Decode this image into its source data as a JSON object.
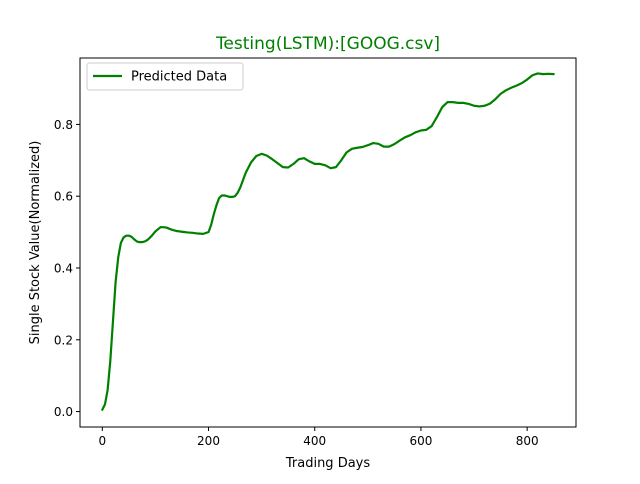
{
  "chart_data": {
    "type": "line",
    "title": "Testing(LSTM):[GOOG.csv]",
    "xlabel": "Trading Days",
    "ylabel": "Single Stock Value(Normalized)",
    "xlim": [
      -42,
      892
    ],
    "ylim": [
      -0.043,
      0.985
    ],
    "xticks": [
      0,
      200,
      400,
      600,
      800
    ],
    "xtick_labels": [
      "0",
      "200",
      "400",
      "600",
      "800"
    ],
    "yticks": [
      0.0,
      0.2,
      0.4,
      0.6,
      0.8
    ],
    "ytick_labels": [
      "0.0",
      "0.2",
      "0.4",
      "0.6",
      "0.8"
    ],
    "grid": false,
    "legend": {
      "placement": "top-left",
      "entries": [
        "Predicted Data"
      ]
    },
    "series": [
      {
        "name": "Predicted Data",
        "color": "#008000",
        "x": [
          0,
          5,
          10,
          15,
          20,
          25,
          30,
          35,
          40,
          45,
          50,
          55,
          60,
          65,
          70,
          75,
          80,
          85,
          90,
          95,
          100,
          110,
          120,
          130,
          140,
          150,
          160,
          170,
          180,
          190,
          200,
          205,
          210,
          215,
          220,
          225,
          230,
          235,
          240,
          245,
          250,
          255,
          260,
          265,
          270,
          280,
          290,
          300,
          310,
          320,
          330,
          340,
          350,
          360,
          370,
          380,
          390,
          400,
          410,
          420,
          430,
          440,
          450,
          460,
          470,
          480,
          490,
          500,
          510,
          520,
          530,
          540,
          550,
          560,
          570,
          580,
          590,
          600,
          610,
          620,
          630,
          640,
          650,
          660,
          670,
          680,
          690,
          700,
          710,
          720,
          730,
          740,
          750,
          760,
          770,
          780,
          790,
          800,
          810,
          820,
          830,
          840,
          850
        ],
        "y": [
          0.005,
          0.02,
          0.06,
          0.14,
          0.25,
          0.36,
          0.43,
          0.47,
          0.485,
          0.49,
          0.49,
          0.487,
          0.48,
          0.474,
          0.472,
          0.472,
          0.474,
          0.478,
          0.485,
          0.493,
          0.502,
          0.514,
          0.513,
          0.507,
          0.503,
          0.501,
          0.499,
          0.498,
          0.496,
          0.495,
          0.5,
          0.52,
          0.55,
          0.575,
          0.595,
          0.602,
          0.602,
          0.6,
          0.598,
          0.598,
          0.6,
          0.61,
          0.625,
          0.645,
          0.665,
          0.694,
          0.712,
          0.718,
          0.713,
          0.703,
          0.692,
          0.681,
          0.68,
          0.69,
          0.703,
          0.706,
          0.697,
          0.69,
          0.69,
          0.686,
          0.678,
          0.681,
          0.7,
          0.722,
          0.732,
          0.735,
          0.737,
          0.742,
          0.748,
          0.746,
          0.738,
          0.738,
          0.745,
          0.755,
          0.764,
          0.77,
          0.778,
          0.783,
          0.785,
          0.795,
          0.82,
          0.848,
          0.862,
          0.862,
          0.86,
          0.86,
          0.857,
          0.852,
          0.85,
          0.852,
          0.858,
          0.87,
          0.885,
          0.895,
          0.902,
          0.908,
          0.915,
          0.925,
          0.937,
          0.942,
          0.94,
          0.941,
          0.94
        ]
      }
    ]
  }
}
